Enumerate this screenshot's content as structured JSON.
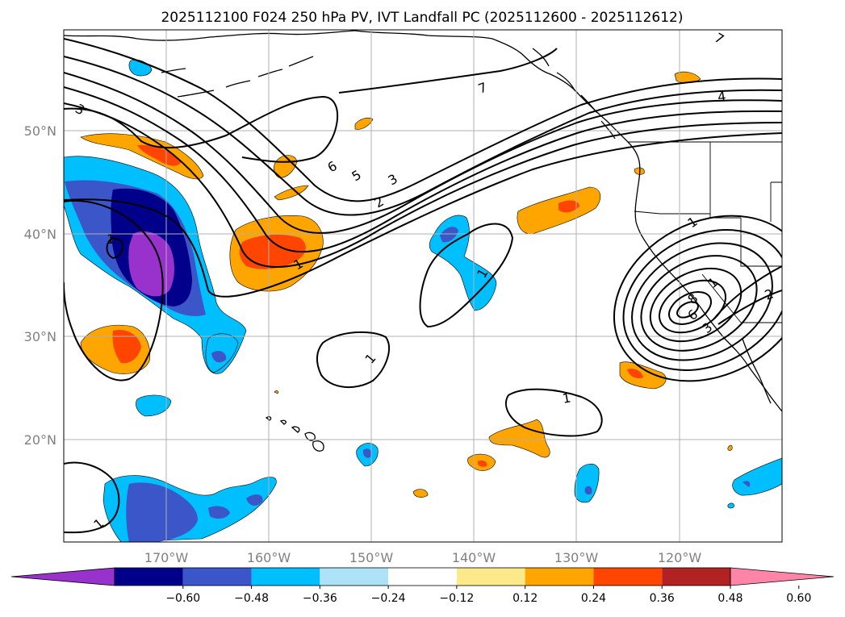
{
  "title": "2025112100 F024 250 hPa PV, IVT Landfall PC (2025112600 - 2025112612)",
  "lat_labels": [
    "50°N",
    "40°N",
    "30°N",
    "20°N"
  ],
  "lon_labels": [
    "170°W",
    "160°W",
    "150°W",
    "140°W",
    "130°W",
    "120°W"
  ],
  "colorbar": {
    "ticks": [
      "−0.60",
      "−0.48",
      "−0.36",
      "−0.24",
      "−0.12",
      "0.12",
      "0.24",
      "0.36",
      "0.48",
      "0.60"
    ],
    "colors": [
      "#9932cc",
      "#00008b",
      "#3a56c9",
      "#00bfff",
      "#aee2f9",
      "#ffffff",
      "#fce98a",
      "#ffa500",
      "#ff4500",
      "#b22222",
      "#ff85a8"
    ]
  },
  "contour_labels": [
    "3",
    "6",
    "5",
    "3",
    "2",
    "1",
    "7",
    "4",
    "1",
    "1",
    "1",
    "1",
    "1",
    "1",
    "2",
    "8",
    "6",
    "3",
    "7",
    "1"
  ]
}
